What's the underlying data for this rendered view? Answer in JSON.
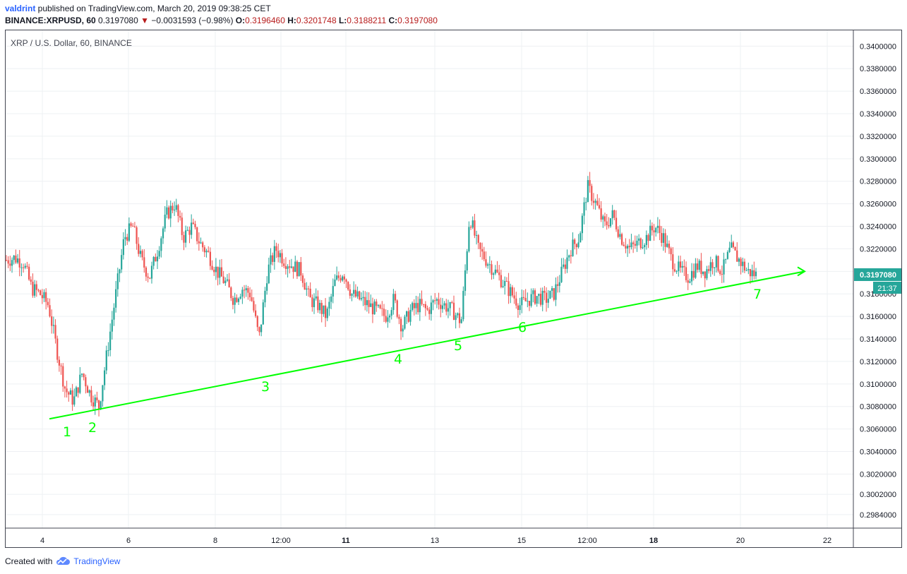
{
  "header": {
    "user": "valdrint",
    "published_text": " published on TradingView.com, March 20, 2019 09:38:25 CET",
    "symbol": "BINANCE:XRPUSD, 60",
    "last": "0.3197080",
    "arrow": "▼",
    "change": "−0.0031593 (−0.98%)",
    "o_label": "O:",
    "o_value": "0.3196460",
    "h_label": "H:",
    "h_value": "0.3201748",
    "l_label": "L:",
    "l_value": "0.3188211",
    "c_label": "C:",
    "c_value": "0.3197080"
  },
  "chart_title": "XRP / U.S. Dollar, 60, BINANCE",
  "footer": {
    "created": "Created with",
    "brand": "TradingView"
  },
  "colors": {
    "up": "#26a69a",
    "down": "#ef5350",
    "trend": "#00ff00",
    "price_tag": "#26a69a",
    "grid": "#eef0f3"
  },
  "icons": {
    "brand": "tradingview-cloud-icon",
    "change_arrow": "down-triangle-icon"
  },
  "chart_data": {
    "type": "candlestick",
    "title": "XRP / U.S. Dollar, 60, BINANCE",
    "y_ticks": [
      "0.3400000",
      "0.3380000",
      "0.3360000",
      "0.3340000",
      "0.3320000",
      "0.3300000",
      "0.3280000",
      "0.3260000",
      "0.3240000",
      "0.3220000",
      "0.3200000",
      "0.3180000",
      "0.3160000",
      "0.3140000",
      "0.3120000",
      "0.3100000",
      "0.3080000",
      "0.3060000",
      "0.3040000",
      "0.3020000",
      "0.3002000",
      "0.2984000"
    ],
    "x_ticks": [
      {
        "label": "4",
        "bold": false
      },
      {
        "label": "6",
        "bold": false
      },
      {
        "label": "8",
        "bold": false
      },
      {
        "label": "12:00",
        "bold": false
      },
      {
        "label": "11",
        "bold": true
      },
      {
        "label": "13",
        "bold": false
      },
      {
        "label": "15",
        "bold": false
      },
      {
        "label": "12:00",
        "bold": false
      },
      {
        "label": "18",
        "bold": true
      },
      {
        "label": "20",
        "bold": false
      },
      {
        "label": "22",
        "bold": false
      }
    ],
    "ylim": [
      0.2972,
      0.3414
    ],
    "current_price": "0.3197080",
    "countdown": "21:37",
    "trendline": {
      "from": 0.3069,
      "to": 0.32
    },
    "annotations": [
      "1",
      "2",
      "3",
      "4",
      "5",
      "6",
      "7"
    ],
    "price_path": [
      0.321,
      0.3212,
      0.3208,
      0.3185,
      0.318,
      0.317,
      0.313,
      0.3095,
      0.3085,
      0.311,
      0.309,
      0.308,
      0.313,
      0.318,
      0.323,
      0.324,
      0.321,
      0.3195,
      0.322,
      0.325,
      0.326,
      0.323,
      0.324,
      0.3225,
      0.3215,
      0.32,
      0.319,
      0.3175,
      0.3185,
      0.318,
      0.314,
      0.32,
      0.322,
      0.321,
      0.3205,
      0.32,
      0.3175,
      0.317,
      0.316,
      0.319,
      0.32,
      0.318,
      0.3175,
      0.317,
      0.3165,
      0.316,
      0.3175,
      0.315,
      0.3165,
      0.317,
      0.3165,
      0.3175,
      0.317,
      0.3165,
      0.3155,
      0.325,
      0.322,
      0.321,
      0.32,
      0.319,
      0.318,
      0.317,
      0.3175,
      0.3178,
      0.3175,
      0.318,
      0.32,
      0.322,
      0.323,
      0.3275,
      0.326,
      0.324,
      0.325,
      0.323,
      0.322,
      0.3225,
      0.323,
      0.324,
      0.323,
      0.321,
      0.32,
      0.3195,
      0.3205,
      0.32,
      0.321,
      0.32,
      0.322,
      0.321,
      0.32,
      0.3197
    ]
  }
}
